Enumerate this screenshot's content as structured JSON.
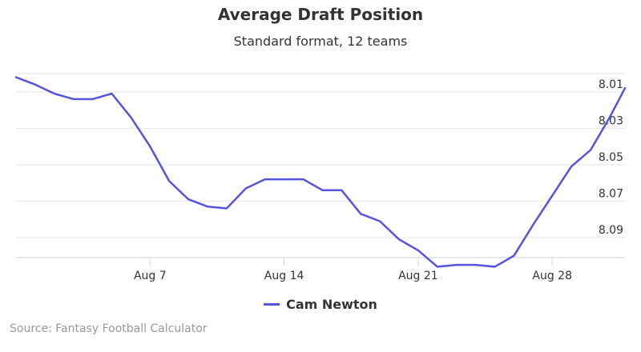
{
  "chart_data": {
    "type": "line",
    "title": "Average Draft Position",
    "subtitle": "Standard format, 12 teams",
    "xlabel": "",
    "ylabel": "",
    "y_axis": {
      "reversed": true,
      "range": [
        8.0,
        8.101
      ],
      "ticks": [
        "8.01",
        "8.03",
        "8.05",
        "8.07",
        "8.09"
      ],
      "tick_values": [
        8.01,
        8.03,
        8.05,
        8.07,
        8.09
      ],
      "position": "right"
    },
    "x_axis": {
      "ticks": [
        "Aug 7",
        "Aug 14",
        "Aug 21",
        "Aug 28"
      ],
      "tick_days": [
        7,
        14,
        21,
        28
      ],
      "range_days": [
        0,
        31.8
      ]
    },
    "grid": true,
    "legend": "bottom-center",
    "series": [
      {
        "name": "Cam Newton",
        "color": "#5454e0",
        "x_days": [
          0,
          1,
          2,
          3,
          4,
          5,
          6,
          7,
          8,
          9,
          10,
          11,
          12,
          13,
          14,
          15,
          16,
          17,
          18,
          19,
          20,
          21,
          22,
          23,
          24,
          25,
          26,
          27,
          28,
          29,
          30,
          31,
          31.8
        ],
        "values": [
          8.002,
          8.006,
          8.011,
          8.014,
          8.014,
          8.011,
          8.024,
          8.04,
          8.059,
          8.069,
          8.073,
          8.074,
          8.063,
          8.058,
          8.058,
          8.058,
          8.064,
          8.064,
          8.077,
          8.081,
          8.091,
          8.097,
          8.106,
          8.105,
          8.105,
          8.106,
          8.1,
          8.083,
          8.067,
          8.051,
          8.042,
          8.024,
          8.008
        ]
      }
    ]
  },
  "credits": "Source: Fantasy Football Calculator"
}
